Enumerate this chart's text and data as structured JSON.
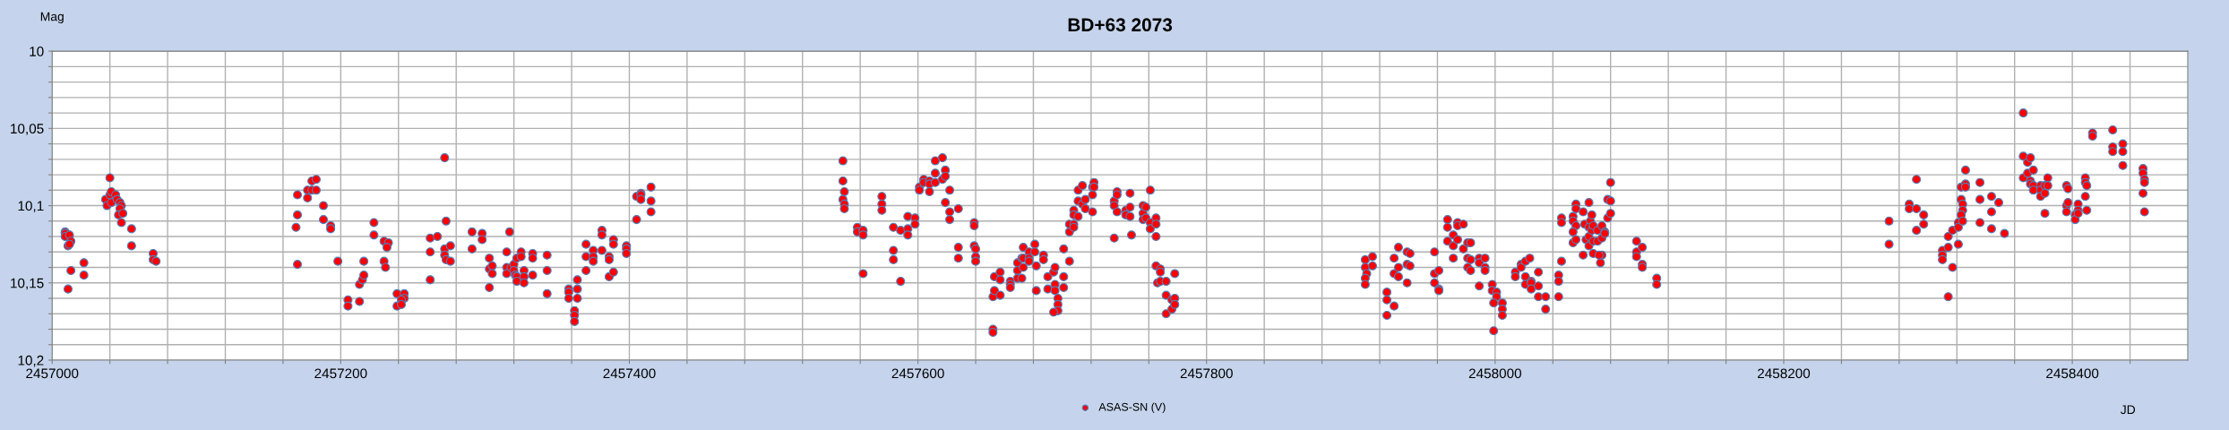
{
  "chart_data": {
    "type": "scatter",
    "title": "BD+63 2073",
    "xlabel": "JD",
    "ylabel": "Mag",
    "xlim": [
      2457000,
      2458480
    ],
    "ylim": [
      10.2,
      10
    ],
    "xticks": [
      2457000,
      {
        "value": 2457040,
        "label": null
      },
      {
        "value": 2457080,
        "label": null
      },
      {
        "value": 2457120,
        "label": null
      },
      {
        "value": 2457160,
        "label": null
      },
      2457200,
      {
        "value": 2457240,
        "label": null
      },
      {
        "value": 2457280,
        "label": null
      },
      {
        "value": 2457320,
        "label": null
      },
      {
        "value": 2457360,
        "label": null
      },
      2457400,
      {
        "value": 2457440,
        "label": null
      },
      {
        "value": 2457480,
        "label": null
      },
      {
        "value": 2457520,
        "label": null
      },
      {
        "value": 2457560,
        "label": null
      },
      2457600,
      {
        "value": 2457640,
        "label": null
      },
      {
        "value": 2457680,
        "label": null
      },
      {
        "value": 2457720,
        "label": null
      },
      {
        "value": 2457760,
        "label": null
      },
      2457800,
      {
        "value": 2457840,
        "label": null
      },
      {
        "value": 2457880,
        "label": null
      },
      {
        "value": 2457920,
        "label": null
      },
      {
        "value": 2457960,
        "label": null
      },
      2458000,
      {
        "value": 2458040,
        "label": null
      },
      {
        "value": 2458080,
        "label": null
      },
      {
        "value": 2458120,
        "label": null
      },
      {
        "value": 2458160,
        "label": null
      },
      2458200,
      {
        "value": 2458240,
        "label": null
      },
      {
        "value": 2458280,
        "label": null
      },
      {
        "value": 2458320,
        "label": null
      },
      {
        "value": 2458360,
        "label": null
      },
      2458400,
      {
        "value": 2458440,
        "label": null
      }
    ],
    "yticks": [
      10,
      {
        "value": 10.01,
        "label": null
      },
      {
        "value": 10.02,
        "label": null
      },
      {
        "value": 10.03,
        "label": null
      },
      {
        "value": 10.04,
        "label": null
      },
      {
        "value": 10.05,
        "label": "10,05"
      },
      {
        "value": 10.06,
        "label": null
      },
      {
        "value": 10.07,
        "label": null
      },
      {
        "value": 10.08,
        "label": null
      },
      {
        "value": 10.09,
        "label": null
      },
      {
        "value": 10.1,
        "label": "10,1"
      },
      {
        "value": 10.11,
        "label": null
      },
      {
        "value": 10.12,
        "label": null
      },
      {
        "value": 10.13,
        "label": null
      },
      {
        "value": 10.14,
        "label": null
      },
      {
        "value": 10.15,
        "label": "10,15"
      },
      {
        "value": 10.16,
        "label": null
      },
      {
        "value": 10.17,
        "label": null
      },
      {
        "value": 10.18,
        "label": null
      },
      {
        "value": 10.19,
        "label": null
      },
      {
        "value": 10.2,
        "label": "10,2"
      }
    ],
    "grid": true,
    "legend": "bottom",
    "marker": "circle",
    "series": [
      {
        "name": "ASAS-SN (V)",
        "color": "#ff0000",
        "x": [
          2457009,
          2457009,
          2457009,
          2457012,
          2457013,
          2457011,
          2457012,
          2457013,
          2457011,
          2457022,
          2457022,
          2457040,
          2457037,
          2457038,
          2457040,
          2457041,
          2457041,
          2457044,
          2457045,
          2457047,
          2457048,
          2457047,
          2457046,
          2457049,
          2457048,
          2457055,
          2457055,
          2457070,
          2457070,
          2457072,
          2457170,
          2457169,
          2457170,
          2457170,
          2457177,
          2457177,
          2457180,
          2457183,
          2457180,
          2457183,
          2457188,
          2457188,
          2457193,
          2457193,
          2457198,
          2457205,
          2457205,
          2457213,
          2457213,
          2457215,
          2457216,
          2457216,
          2457223,
          2457223,
          2457230,
          2457233,
          2457232,
          2457230,
          2457231,
          2457239,
          2457244,
          2457244,
          2457242,
          2457239,
          2457242,
          2457262,
          2457267,
          2457262,
          2457262,
          2457272,
          2457273,
          2457272,
          2457276,
          2457272,
          2457273,
          2457276,
          2457291,
          2457291,
          2457298,
          2457298,
          2457303,
          2457303,
          2457303,
          2457305,
          2457305,
          2457315,
          2457315,
          2457315,
          2457317,
          2457318,
          2457320,
          2457320,
          2457321,
          2457322,
          2457322,
          2457322,
          2457325,
          2457325,
          2457327,
          2457327,
          2457327,
          2457333,
          2457333,
          2457333,
          2457343,
          2457343,
          2457343,
          2457358,
          2457358,
          2457358,
          2457362,
          2457362,
          2457362,
          2457364,
          2457364,
          2457364,
          2457370,
          2457370,
          2457370,
          2457375,
          2457375,
          2457375,
          2457381,
          2457381,
          2457381,
          2457386,
          2457386,
          2457386,
          2457389,
          2457389,
          2457389,
          2457398,
          2457398,
          2457398,
          2457405,
          2457405,
          2457408,
          2457408,
          2457408,
          2457415,
          2457415,
          2457415,
          2457548,
          2457548,
          2457549,
          2457548,
          2457549,
          2457549,
          2457558,
          2457558,
          2457562,
          2457562,
          2457562,
          2457575,
          2457575,
          2457575,
          2457583,
          2457583,
          2457583,
          2457588,
          2457588,
          2457593,
          2457593,
          2457593,
          2457598,
          2457598,
          2457601,
          2457601,
          2457604,
          2457604,
          2457608,
          2457608,
          2457608,
          2457612,
          2457612,
          2457612,
          2457617,
          2457617,
          2457619,
          2457619,
          2457619,
          2457622,
          2457622,
          2457622,
          2457628,
          2457628,
          2457628,
          2457639,
          2457639,
          2457639,
          2457640,
          2457640,
          2457640,
          2457652,
          2457652,
          2457652,
          2457653,
          2457653,
          2457657,
          2457657,
          2457657,
          2457664,
          2457664,
          2457664,
          2457669,
          2457669,
          2457669,
          2457672,
          2457672,
          2457673,
          2457673,
          2457673,
          2457677,
          2457677,
          2457677,
          2457681,
          2457681,
          2457682,
          2457682,
          2457687,
          2457687,
          2457690,
          2457690,
          2457694,
          2457695,
          2457695,
          2457695,
          2457697,
          2457697,
          2457697,
          2457694,
          2457701,
          2457701,
          2457701,
          2457705,
          2457705,
          2457705,
          2457708,
          2457708,
          2457708,
          2457708,
          2457711,
          2457711,
          2457711,
          2457714,
          2457714,
          2457716,
          2457716,
          2457721,
          2457721,
          2457721,
          2457722,
          2457722,
          2457736,
          2457736,
          2457736,
          2457738,
          2457738,
          2457738,
          2457744,
          2457744,
          2457747,
          2457747,
          2457747,
          2457748,
          2457756,
          2457756,
          2457756,
          2457758,
          2457758,
          2457761,
          2457761,
          2457761,
          2457765,
          2457765,
          2457765,
          2457765,
          2457768,
          2457768,
          2457766,
          2457768,
          2457772,
          2457772,
          2457772,
          2457776,
          2457776,
          2457778,
          2457778,
          2457778,
          2457910,
          2457910,
          2457911,
          2457910,
          2457910,
          2457915,
          2457915,
          2457925,
          2457925,
          2457925,
          2457930,
          2457930,
          2457930,
          2457933,
          2457933,
          2457933,
          2457939,
          2457941,
          2457939,
          2457941,
          2457939,
          2457958,
          2457958,
          2457958,
          2457961,
          2457961,
          2457961,
          2457967,
          2457967,
          2457967,
          2457971,
          2457971,
          2457971,
          2457974,
          2457974,
          2457974,
          2457978,
          2457978,
          2457981,
          2457983,
          2457981,
          2457983,
          2457981,
          2457983,
          2457989,
          2457989,
          2457989,
          2457993,
          2457993,
          2457993,
          2457998,
          2457998,
          2458001,
          2458001,
          2457999,
          2457999,
          2458005,
          2458005,
          2458005,
          2458014,
          2458014,
          2458018,
          2458018,
          2458021,
          2458024,
          2458021,
          2458021,
          2458025,
          2458025,
          2458025,
          2458030,
          2458030,
          2458030,
          2458035,
          2458035,
          2458044,
          2458044,
          2458044,
          2458046,
          2458046,
          2458046,
          2458056,
          2458056,
          2458054,
          2458054,
          2458056,
          2458054,
          2458054,
          2458056,
          2458061,
          2458062,
          2458061,
          2458063,
          2458065,
          2458066,
          2458065,
          2458065,
          2458065,
          2458067,
          2458067,
          2458068,
          2458068,
          2458071,
          2458071,
          2458074,
          2458074,
          2458074,
          2458073,
          2458068,
          2458072,
          2458076,
          2458076,
          2458078,
          2458078,
          2458080,
          2458080,
          2458080,
          2458098,
          2458098,
          2458098,
          2458102,
          2458102,
          2458102,
          2458112,
          2458112,
          2458273,
          2458273,
          2458287,
          2458287,
          2458292,
          2458292,
          2458292,
          2458297,
          2458297,
          2458310,
          2458310,
          2458310,
          2458314,
          2458314,
          2458314,
          2458317,
          2458317,
          2458321,
          2458321,
          2458321,
          2458323,
          2458323,
          2458324,
          2458324,
          2458323,
          2458324,
          2458326,
          2458326,
          2458326,
          2458336,
          2458336,
          2458336,
          2458344,
          2458344,
          2458344,
          2458349,
          2458353,
          2458366,
          2458366,
          2458366,
          2458369,
          2458369,
          2458371,
          2458371,
          2458371,
          2458373,
          2458373,
          2458373,
          2458378,
          2458378,
          2458378,
          2458381,
          2458381,
          2458381,
          2458383,
          2458383,
          2458396,
          2458397,
          2458396,
          2458397,
          2458396,
          2458402,
          2458402,
          2458404,
          2458404,
          2458404,
          2458409,
          2458409,
          2458410,
          2458409,
          2458410,
          2458414,
          2458414,
          2458428,
          2458428,
          2458428,
          2458435,
          2458435,
          2458435,
          2458449,
          2458449,
          2458450,
          2458450,
          2458449,
          2458450
        ],
        "values": [
          10.117,
          10.118,
          10.12,
          10.119,
          10.123,
          10.126,
          10.125,
          10.142,
          10.154,
          10.137,
          10.145,
          10.082,
          10.096,
          10.1,
          10.093,
          10.091,
          10.098,
          10.093,
          10.096,
          10.098,
          10.1,
          10.102,
          10.106,
          10.105,
          10.111,
          10.115,
          10.126,
          10.131,
          10.135,
          10.136,
          10.138,
          10.114,
          10.106,
          10.093,
          10.095,
          10.09,
          10.09,
          10.09,
          10.084,
          10.083,
          10.1,
          10.109,
          10.113,
          10.115,
          10.136,
          10.161,
          10.165,
          10.162,
          10.151,
          10.148,
          10.145,
          10.136,
          10.111,
          10.119,
          10.123,
          10.124,
          10.127,
          10.136,
          10.14,
          10.157,
          10.157,
          10.16,
          10.161,
          10.165,
          10.164,
          10.121,
          10.12,
          10.13,
          10.148,
          10.069,
          10.11,
          10.128,
          10.126,
          10.132,
          10.135,
          10.136,
          10.117,
          10.128,
          10.118,
          10.122,
          10.134,
          10.141,
          10.153,
          10.139,
          10.144,
          10.13,
          10.14,
          10.144,
          10.117,
          10.14,
          10.138,
          10.142,
          10.145,
          10.134,
          10.146,
          10.149,
          10.13,
          10.133,
          10.142,
          10.146,
          10.15,
          10.131,
          10.134,
          10.145,
          10.132,
          10.142,
          10.157,
          10.154,
          10.156,
          10.16,
          10.168,
          10.171,
          10.175,
          10.148,
          10.154,
          10.16,
          10.125,
          10.133,
          10.142,
          10.129,
          10.133,
          10.136,
          10.116,
          10.119,
          10.129,
          10.133,
          10.135,
          10.146,
          10.122,
          10.125,
          10.143,
          10.126,
          10.128,
          10.131,
          10.094,
          10.109,
          10.092,
          10.093,
          10.096,
          10.088,
          10.097,
          10.104,
          10.071,
          10.084,
          10.091,
          10.096,
          10.099,
          10.102,
          10.114,
          10.117,
          10.116,
          10.119,
          10.144,
          10.094,
          10.099,
          10.103,
          10.114,
          10.129,
          10.135,
          10.116,
          10.149,
          10.107,
          10.115,
          10.119,
          10.108,
          10.112,
          10.088,
          10.09,
          10.083,
          10.085,
          10.084,
          10.086,
          10.091,
          10.071,
          10.079,
          10.085,
          10.069,
          10.083,
          10.077,
          10.081,
          10.098,
          10.09,
          10.104,
          10.109,
          10.102,
          10.127,
          10.134,
          10.111,
          10.113,
          10.126,
          10.128,
          10.133,
          10.136,
          10.18,
          10.182,
          10.159,
          10.155,
          10.146,
          10.143,
          10.148,
          10.158,
          10.149,
          10.151,
          10.153,
          10.137,
          10.142,
          10.147,
          10.134,
          10.147,
          10.127,
          10.134,
          10.14,
          10.13,
          10.134,
          10.136,
          10.125,
          10.13,
          10.139,
          10.155,
          10.132,
          10.135,
          10.146,
          10.154,
          10.143,
          10.14,
          10.151,
          10.155,
          10.16,
          10.164,
          10.168,
          10.169,
          10.128,
          10.146,
          10.153,
          10.136,
          10.117,
          10.112,
          10.112,
          10.114,
          10.103,
          10.106,
          10.107,
          10.097,
          10.09,
          10.087,
          10.099,
          10.096,
          10.102,
          10.088,
          10.093,
          10.104,
          10.085,
          10.088,
          10.097,
          10.1,
          10.121,
          10.091,
          10.093,
          10.104,
          10.103,
          10.106,
          10.092,
          10.101,
          10.107,
          10.119,
          10.1,
          10.105,
          10.109,
          10.101,
          10.108,
          10.09,
          10.111,
          10.115,
          10.108,
          10.112,
          10.12,
          10.139,
          10.141,
          10.143,
          10.15,
          10.149,
          10.149,
          10.158,
          10.17,
          10.161,
          10.167,
          10.16,
          10.164,
          10.144,
          10.135,
          10.14,
          10.144,
          10.147,
          10.151,
          10.133,
          10.139,
          10.156,
          10.161,
          10.171,
          10.134,
          10.144,
          10.165,
          10.127,
          10.14,
          10.146,
          10.13,
          10.131,
          10.138,
          10.139,
          10.15,
          10.13,
          10.144,
          10.15,
          10.142,
          10.154,
          10.155,
          10.109,
          10.114,
          10.123,
          10.119,
          10.126,
          10.134,
          10.111,
          10.113,
          10.122,
          10.112,
          10.128,
          10.124,
          10.124,
          10.134,
          10.135,
          10.14,
          10.142,
          10.134,
          10.137,
          10.152,
          10.134,
          10.14,
          10.142,
          10.151,
          10.155,
          10.156,
          10.159,
          10.163,
          10.181,
          10.163,
          10.167,
          10.171,
          10.143,
          10.146,
          10.138,
          10.14,
          10.136,
          10.134,
          10.146,
          10.151,
          10.149,
          10.15,
          10.154,
          10.143,
          10.152,
          10.159,
          10.159,
          10.167,
          10.145,
          10.149,
          10.159,
          10.108,
          10.111,
          10.136,
          10.099,
          10.102,
          10.107,
          10.11,
          10.113,
          10.117,
          10.124,
          10.122,
          10.104,
          10.112,
          10.132,
          10.122,
          10.098,
          10.11,
          10.114,
          10.12,
          10.126,
          10.106,
          10.116,
          10.113,
          10.123,
          10.116,
          10.123,
          10.113,
          10.121,
          10.132,
          10.137,
          10.131,
          10.132,
          10.117,
          10.118,
          10.108,
          10.096,
          10.097,
          10.085,
          10.105,
          10.123,
          10.13,
          10.133,
          10.127,
          10.138,
          10.14,
          10.147,
          10.151,
          10.11,
          10.125,
          10.099,
          10.102,
          10.083,
          10.102,
          10.116,
          10.106,
          10.112,
          10.129,
          10.132,
          10.135,
          10.12,
          10.127,
          10.159,
          10.116,
          10.14,
          10.111,
          10.114,
          10.125,
          10.088,
          10.096,
          10.099,
          10.103,
          10.106,
          10.11,
          10.077,
          10.086,
          10.088,
          10.085,
          10.096,
          10.111,
          10.094,
          10.104,
          10.115,
          10.098,
          10.118,
          10.04,
          10.068,
          10.082,
          10.072,
          10.079,
          10.069,
          10.084,
          10.086,
          10.077,
          10.087,
          10.09,
          10.087,
          10.09,
          10.094,
          10.087,
          10.092,
          10.105,
          10.082,
          10.087,
          10.087,
          10.089,
          10.1,
          10.098,
          10.104,
          10.106,
          10.109,
          10.099,
          10.103,
          10.105,
          10.082,
          10.085,
          10.087,
          10.094,
          10.103,
          10.053,
          10.055,
          10.051,
          10.062,
          10.065,
          10.06,
          10.065,
          10.074,
          10.076,
          10.079,
          10.083,
          10.085,
          10.092,
          10.104
        ]
      }
    ]
  }
}
